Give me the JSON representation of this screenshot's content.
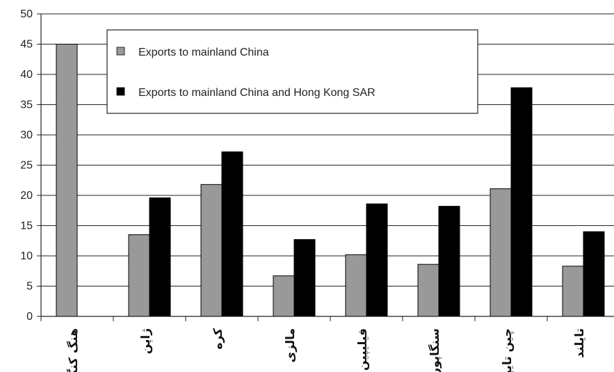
{
  "chart_data": {
    "type": "bar",
    "categories": [
      "هنگ کنگ",
      "ژاپن",
      "کره",
      "مالزی",
      "فیلیپین",
      "سنگاپور",
      "چین تایپه",
      "تایلند"
    ],
    "series": [
      {
        "name": "Exports to mainland China",
        "color": "#999999",
        "values": [
          45,
          13.5,
          21.8,
          6.7,
          10.2,
          8.6,
          21.1,
          8.3
        ]
      },
      {
        "name": "Exports to mainland China and Hong Kong SAR",
        "color": "#000000",
        "values": [
          null,
          19.6,
          27.2,
          12.7,
          18.6,
          18.2,
          37.8,
          14.0
        ]
      }
    ],
    "ylim": [
      0,
      50
    ],
    "yticks": [
      0,
      5,
      10,
      15,
      20,
      25,
      30,
      35,
      40,
      45,
      50
    ],
    "grid": true,
    "legend_position": "top-center",
    "title": "",
    "xlabel": "",
    "ylabel": ""
  }
}
